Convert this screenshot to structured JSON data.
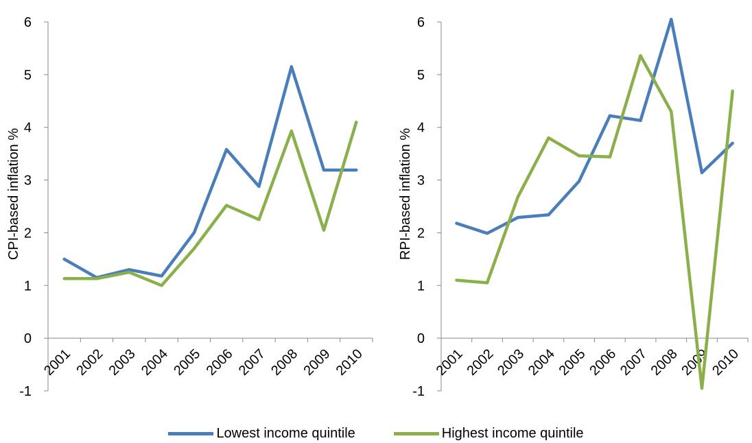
{
  "chart_data": [
    {
      "type": "line",
      "ylabel": "CPI-based inflation %",
      "xlabel": "",
      "categories": [
        "2001",
        "2002",
        "2003",
        "2004",
        "2005",
        "2006",
        "2007",
        "2008",
        "2009",
        "2010"
      ],
      "ylim": [
        -1,
        6
      ],
      "yticks": [
        -1,
        0,
        1,
        2,
        3,
        4,
        5,
        6
      ],
      "grid": false,
      "series": [
        {
          "name": "Lowest income quintile",
          "color": "#4a7ebb",
          "values": [
            1.5,
            1.15,
            1.3,
            1.18,
            2.0,
            3.58,
            2.88,
            5.15,
            3.19,
            3.19
          ]
        },
        {
          "name": "Highest income quintile",
          "color": "#8bb04b",
          "values": [
            1.13,
            1.13,
            1.25,
            1.0,
            1.7,
            2.52,
            2.25,
            3.93,
            2.05,
            4.1
          ]
        }
      ]
    },
    {
      "type": "line",
      "ylabel": "RPI-based inflation %",
      "xlabel": "",
      "categories": [
        "2001",
        "2002",
        "2003",
        "2004",
        "2005",
        "2006",
        "2007",
        "2008",
        "2009",
        "2010"
      ],
      "ylim": [
        -1,
        6
      ],
      "yticks": [
        -1,
        0,
        1,
        2,
        3,
        4,
        5,
        6
      ],
      "grid": false,
      "series": [
        {
          "name": "Lowest income quintile",
          "color": "#4a7ebb",
          "values": [
            2.18,
            1.99,
            2.29,
            2.34,
            2.98,
            4.22,
            4.13,
            6.05,
            3.14,
            3.7
          ]
        },
        {
          "name": "Highest income quintile",
          "color": "#8bb04b",
          "values": [
            1.1,
            1.05,
            2.68,
            3.8,
            3.46,
            3.44,
            5.36,
            4.3,
            -0.95,
            4.69
          ]
        }
      ]
    }
  ],
  "legend": {
    "position": "bottom",
    "items": [
      {
        "label": "Lowest income quintile",
        "color": "#4a7ebb"
      },
      {
        "label": "Highest income quintile",
        "color": "#8bb04b"
      }
    ]
  }
}
